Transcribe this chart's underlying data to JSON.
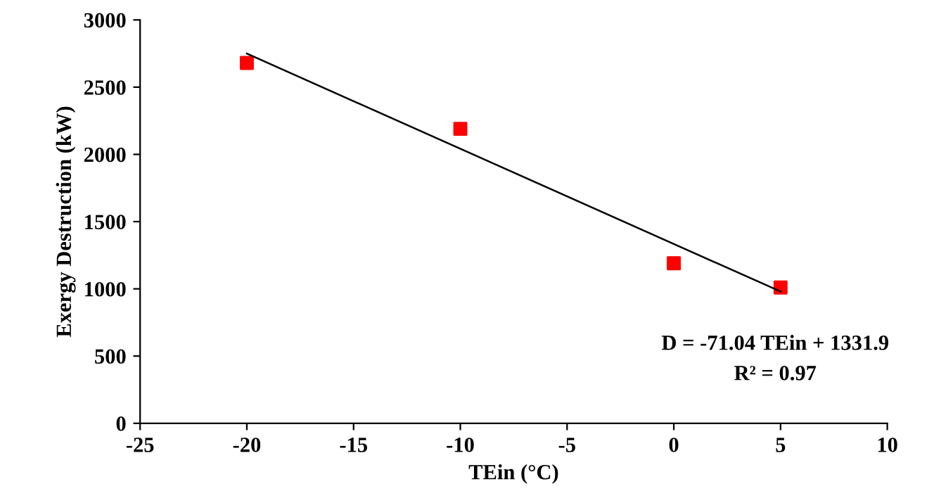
{
  "chart_data": {
    "type": "scatter",
    "xlabel": "TEin (°C)",
    "ylabel": "Exergy Destruction (kW)",
    "xlim": [
      -25,
      10
    ],
    "xticks": [
      -25,
      -20,
      -15,
      -10,
      -5,
      0,
      5,
      10
    ],
    "ylim": [
      0,
      3000
    ],
    "yticks": [
      0,
      500,
      1000,
      1500,
      2000,
      2500,
      3000
    ],
    "grid": false,
    "series": [
      {
        "color": "#ff0000",
        "marker": "square",
        "x": [
          -20,
          -10,
          0,
          5
        ],
        "values": [
          2680,
          2190,
          1190,
          1010
        ]
      },
      {
        "type": "line",
        "color": "#000000",
        "line_style": "solid",
        "x": [
          -20,
          5
        ],
        "values": [
          2750,
          980
        ]
      }
    ],
    "annotations": [
      "D = -71.04 TEin + 1331.9",
      "R² = 0.97"
    ]
  }
}
